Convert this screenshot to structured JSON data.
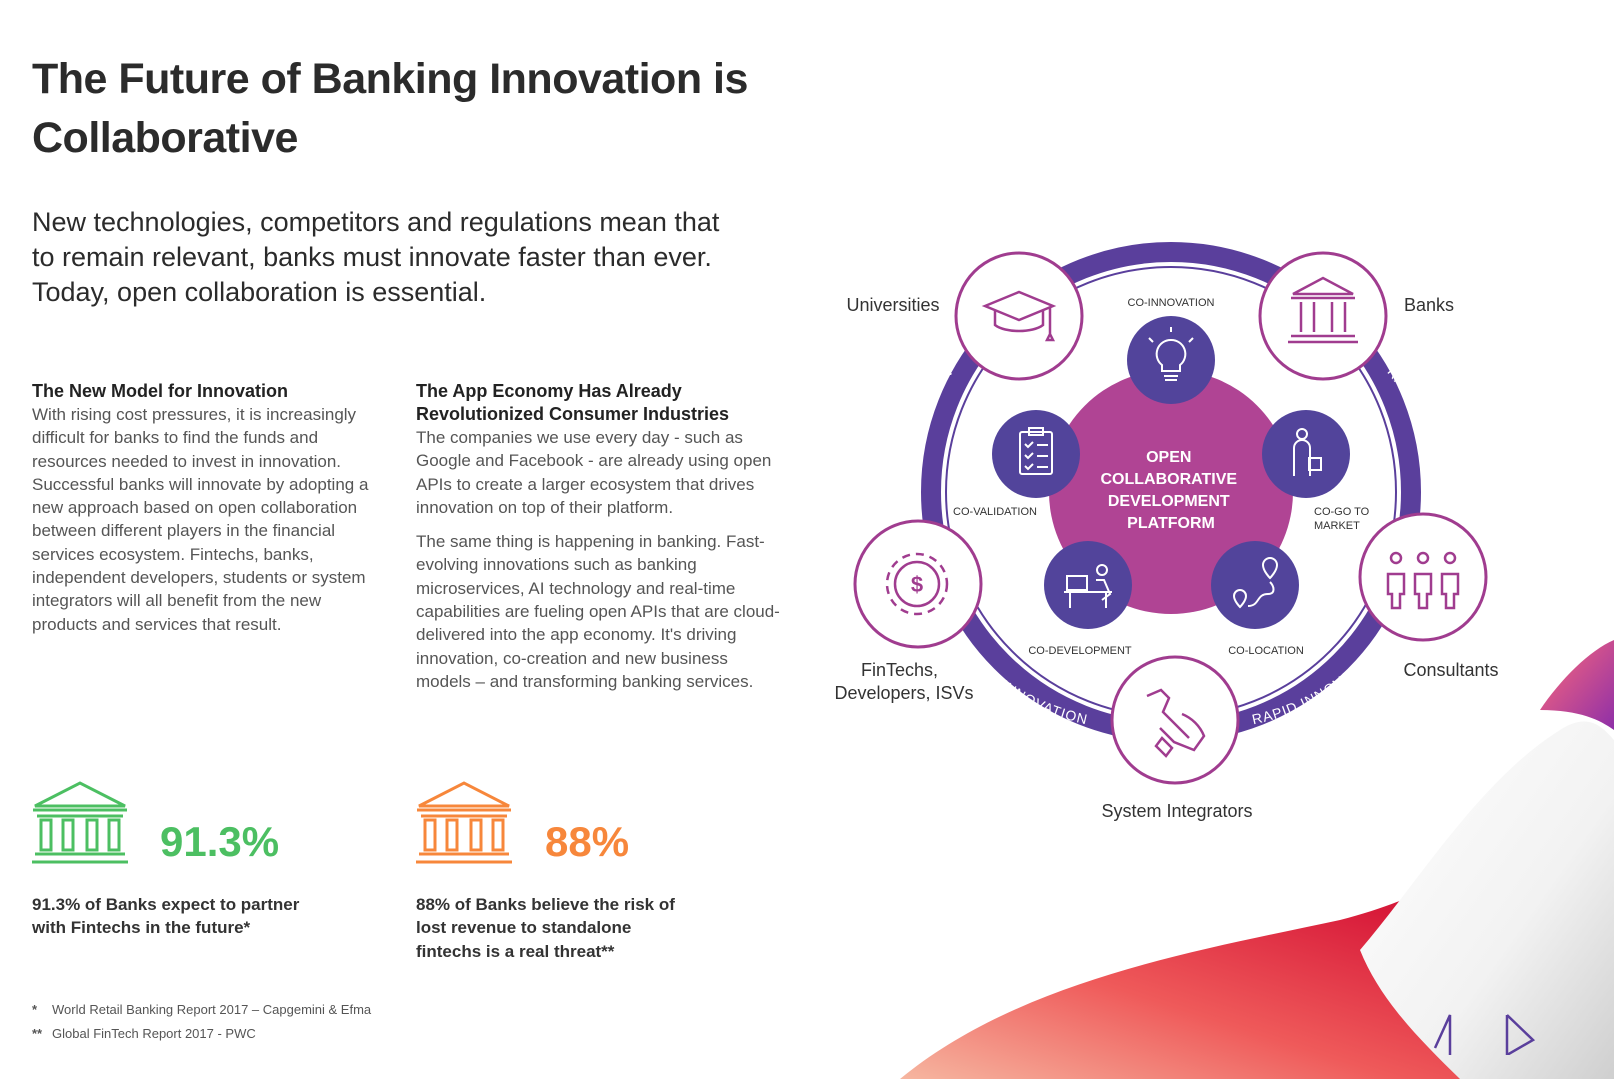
{
  "title": "The Future of Banking Innovation is Collaborative",
  "subtitle": "New technologies, competitors and regulations mean that to remain relevant, banks must innovate faster than ever. Today, open collaboration is essential.",
  "col1": {
    "heading": "The New Model for Innovation",
    "body": "With rising cost pressures, it is increasingly difficult for banks to find the funds and resources needed to invest in innovation. Successful banks will innovate by adopting a new approach based on open collaboration between different players in the financial services ecosystem. Fintechs, banks, independent developers, students or system integrators will all benefit from the new products and services that result."
  },
  "col2": {
    "heading": "The App Economy Has Already Revolutionized Consumer Industries",
    "body1": "The companies we use every day - such as Google and Facebook - are already using open APIs to create a larger ecosystem that drives innovation on top of their platform.",
    "body2": "The same thing is happening in banking. Fast-evolving innovations such as banking microservices, AI technology and real-time capabilities are fueling open APIs that are cloud-delivered into the app economy. It's driving innovation, co-creation and new business models – and transforming banking services."
  },
  "stats": [
    {
      "value": "91.3%",
      "text": "91.3% of Banks expect to partner with Fintechs in the future*",
      "color": "#4cbf62"
    },
    {
      "value": "88%",
      "text": "88% of Banks believe the risk of lost revenue to standalone fintechs is a real threat**",
      "color": "#f7873b"
    }
  ],
  "footnotes": [
    {
      "mark": "*",
      "text": "World Retail Banking Report 2017 – Capgemini & Efma"
    },
    {
      "mark": "**",
      "text": "Global FinTech Report 2017 - PWC"
    }
  ],
  "diagram": {
    "center": [
      "OPEN",
      "COLLABORATIVE",
      "DEVELOPMENT",
      "PLATFORM"
    ],
    "ring_label": "RAPID INNOVATION",
    "participants": {
      "universities": "Universities",
      "banks": "Banks",
      "fintechs": [
        "FinTechs,",
        "Developers, ISVs"
      ],
      "consultants": "Consultants",
      "integrators": "System Integrators"
    },
    "activities": {
      "co_innovation": "CO-INNOVATION",
      "co_validation": "CO-VALIDATION",
      "co_go_to_market": [
        "CO-GO TO",
        "MARKET"
      ],
      "co_development": "CO-DEVELOPMENT",
      "co_location": "CO-LOCATION"
    },
    "colors": {
      "ring": "#5a3f9c",
      "center": "#b04494",
      "node": "#a03c8f",
      "activity": "#52449b"
    }
  },
  "icons": [
    "bank-icon",
    "graduation-cap-icon",
    "lightbulb-icon",
    "clipboard-icon",
    "person-bag-icon",
    "dollar-gear-icon",
    "developer-icon",
    "location-route-icon",
    "people-icon",
    "wrench-hand-icon",
    "prev-arrow-icon",
    "next-arrow-icon"
  ]
}
